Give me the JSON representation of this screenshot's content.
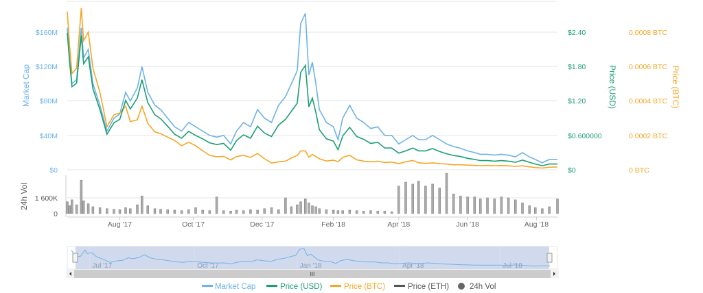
{
  "chart_data": {
    "type": "line",
    "title": "",
    "x_unit": "days since mid-Jun 2017",
    "x": [
      0,
      2,
      4,
      8,
      12,
      14,
      18,
      22,
      28,
      34,
      40,
      45,
      50,
      54,
      60,
      64,
      69,
      75,
      80,
      86,
      92,
      98,
      104,
      110,
      116,
      122,
      128,
      134,
      140,
      145,
      151,
      157,
      163,
      169,
      175,
      181,
      187,
      192,
      197,
      200,
      204,
      207,
      210,
      213,
      216,
      222,
      228,
      232,
      236,
      242,
      248,
      254,
      260,
      266,
      272,
      278,
      284,
      290,
      296,
      301,
      307,
      313,
      319,
      325,
      331,
      337,
      343,
      349,
      354,
      360,
      366,
      372,
      378,
      384,
      390,
      396,
      401,
      407,
      413,
      420
    ],
    "series": [
      {
        "name": "Market Cap",
        "unit": "M USD",
        "color": "#6cb2e8",
        "values": [
          165,
          130,
          100,
          105,
          165,
          130,
          140,
          100,
          75,
          45,
          60,
          65,
          90,
          80,
          95,
          120,
          90,
          75,
          70,
          60,
          50,
          45,
          55,
          50,
          45,
          40,
          38,
          40,
          30,
          45,
          55,
          50,
          70,
          60,
          55,
          75,
          85,
          100,
          115,
          170,
          182,
          110,
          125,
          100,
          70,
          55,
          50,
          35,
          60,
          75,
          60,
          55,
          48,
          50,
          40,
          40,
          30,
          35,
          40,
          35,
          35,
          40,
          35,
          30,
          27,
          25,
          22,
          20,
          18,
          18,
          17,
          18,
          17,
          15,
          20,
          15,
          12,
          8,
          12,
          12
        ]
      },
      {
        "name": "Price (USD)",
        "unit": "USD",
        "color": "#1a9e72",
        "values": [
          2.39,
          1.88,
          1.45,
          1.51,
          2.34,
          1.85,
          1.97,
          1.41,
          1.05,
          0.62,
          0.82,
          0.88,
          1.21,
          1.06,
          1.25,
          1.57,
          1.17,
          0.96,
          0.89,
          0.76,
          0.62,
          0.55,
          0.67,
          0.6,
          0.54,
          0.47,
          0.44,
          0.46,
          0.34,
          0.51,
          0.61,
          0.55,
          0.76,
          0.64,
          0.58,
          0.78,
          0.88,
          1.02,
          1.16,
          1.7,
          1.82,
          1.1,
          1.25,
          1.0,
          0.7,
          0.54,
          0.5,
          0.35,
          0.59,
          0.74,
          0.58,
          0.53,
          0.46,
          0.48,
          0.38,
          0.38,
          0.29,
          0.33,
          0.38,
          0.33,
          0.33,
          0.37,
          0.32,
          0.28,
          0.25,
          0.23,
          0.2,
          0.18,
          0.16,
          0.16,
          0.15,
          0.16,
          0.15,
          0.13,
          0.17,
          0.13,
          0.1,
          0.07,
          0.1,
          0.1
        ]
      },
      {
        "name": "Price (BTC)",
        "unit": "BTC",
        "color": "#f5a623",
        "values": [
          0.00092,
          0.00072,
          0.00056,
          0.00059,
          0.00094,
          0.00075,
          0.0008,
          0.00059,
          0.00045,
          0.00025,
          0.00032,
          0.00033,
          0.00037,
          0.00028,
          0.00029,
          0.00037,
          0.00027,
          0.00022,
          0.00021,
          0.00019,
          0.00017,
          0.00014,
          0.00016,
          0.00014,
          0.00011,
          8.4e-05,
          7.6e-05,
          7.8e-05,
          5.7e-05,
          7.7e-05,
          8.4e-05,
          7.2e-05,
          9.5e-05,
          6.4e-05,
          3.9e-05,
          4.6e-05,
          5e-05,
          6.8e-05,
          8.3e-05,
          0.00011,
          0.00011,
          7.3e-05,
          8.9e-05,
          7.7e-05,
          6.4e-05,
          5.1e-05,
          5.6e-05,
          4.7e-05,
          7.2e-05,
          8.4e-05,
          5.8e-05,
          5e-05,
          4.6e-05,
          5e-05,
          4.2e-05,
          4.5e-05,
          3.6e-05,
          4.7e-05,
          5.4e-05,
          4.1e-05,
          3.7e-05,
          4e-05,
          3.6e-05,
          3.3e-05,
          2.9e-05,
          2.9e-05,
          2.7e-05,
          2.5e-05,
          2.4e-05,
          2.5e-05,
          2.4e-05,
          2.5e-05,
          2.3e-05,
          2e-05,
          2.3e-05,
          1.7e-05,
          1.3e-05,
          1e-05,
          1.5e-05,
          1.6e-05
        ]
      },
      {
        "name": "24h Vol",
        "unit": "K",
        "color": "#999999",
        "values": [
          1200,
          800,
          1400,
          900,
          3400,
          1300,
          1000,
          700,
          600,
          500,
          450,
          400,
          600,
          500,
          900,
          1800,
          800,
          500,
          450,
          400,
          350,
          300,
          400,
          600,
          350,
          300,
          1700,
          300,
          250,
          350,
          300,
          400,
          350,
          500,
          600,
          400,
          1600,
          700,
          900,
          1200,
          1500,
          1100,
          800,
          700,
          500,
          400,
          350,
          300,
          300,
          350,
          300,
          250,
          300,
          250,
          250,
          200,
          2800,
          3200,
          3000,
          3300,
          2800,
          3000,
          2600,
          4100,
          2000,
          1800,
          1700,
          1700,
          1500,
          1600,
          1500,
          1700,
          1600,
          1400,
          1100,
          800,
          600,
          500,
          700,
          1500
        ]
      }
    ],
    "axes": {
      "market_cap": {
        "label": "Market Cap",
        "ticks": [
          "$160M",
          "$120M",
          "$80M",
          "$40M",
          "$0"
        ],
        "range": [
          0,
          160
        ]
      },
      "price_usd": {
        "label": "Price (USD)",
        "ticks": [
          "$2.40",
          "$1.80",
          "$1.20",
          "$0.600000",
          "$0"
        ],
        "range": [
          0,
          2.4
        ]
      },
      "price_btc": {
        "label": "Price (BTC)",
        "ticks": [
          "0.0008 BTC",
          "0.0006 BTC",
          "0.0004 BTC",
          "0.0002 BTC",
          "0 BTC"
        ],
        "range": [
          0,
          0.0008
        ]
      },
      "volume": {
        "label": "24h Vol",
        "ticks": [
          "1 600K",
          "0"
        ],
        "range": [
          0,
          1600
        ]
      }
    },
    "x_ticks": [
      {
        "label": "Aug '17",
        "day": 45
      },
      {
        "label": "Oct '17",
        "day": 108
      },
      {
        "label": "Dec '17",
        "day": 167
      },
      {
        "label": "Feb '18",
        "day": 228
      },
      {
        "label": "Apr '18",
        "day": 284
      },
      {
        "label": "Jun '18",
        "day": 343
      },
      {
        "label": "Aug '18",
        "day": 402
      }
    ],
    "navigator_ticks": [
      {
        "label": "Jul '17",
        "day": 16
      },
      {
        "label": "Oct '17",
        "day": 108
      },
      {
        "label": "Jan '18",
        "day": 198
      },
      {
        "label": "Apr '18",
        "day": 288
      },
      {
        "label": "Jul '18",
        "day": 376
      }
    ],
    "legend": [
      "Market Cap",
      "Price (USD)",
      "Price (BTC)",
      "Price (ETH)",
      "24h Vol"
    ],
    "legend_placement": "bottom",
    "grid": true
  },
  "scrollbar": {
    "grip": "III"
  }
}
